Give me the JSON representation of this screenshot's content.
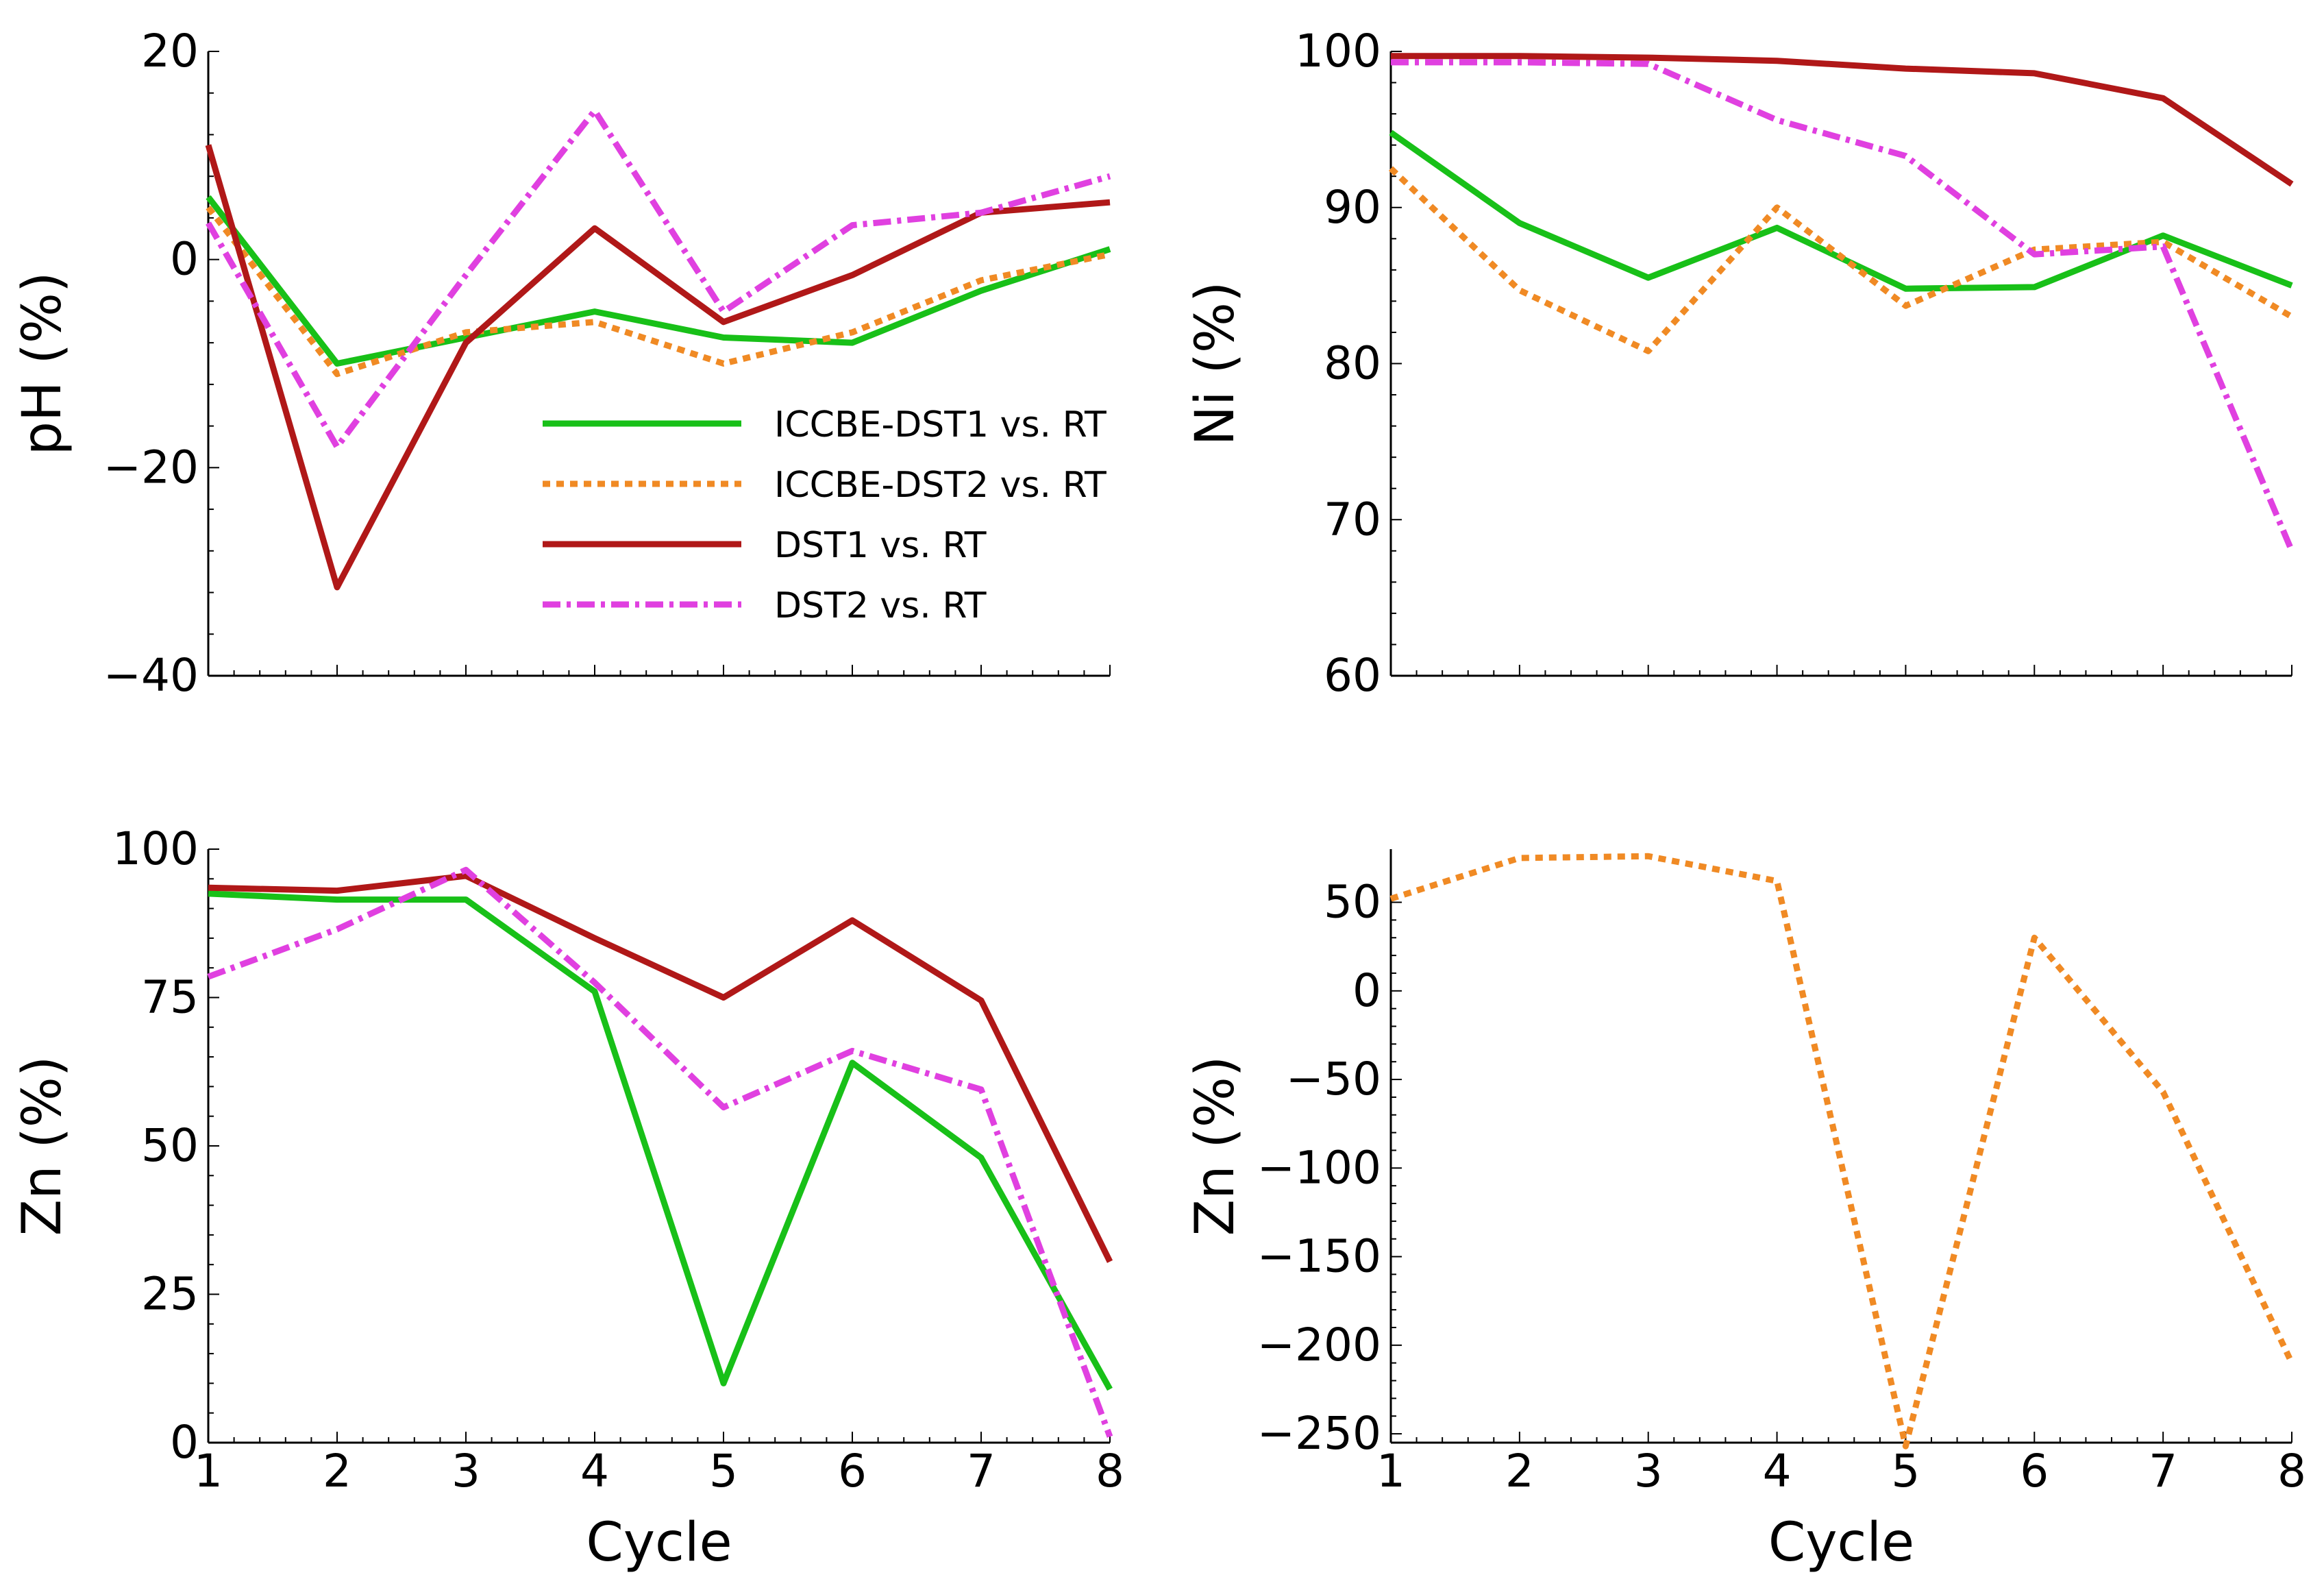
{
  "chart_data": [
    {
      "id": "ph",
      "type": "line",
      "title": "",
      "xlabel": "",
      "ylabel": "pH (%)",
      "x": [
        1,
        2,
        3,
        4,
        5,
        6,
        7,
        8
      ],
      "xlim": [
        1,
        8
      ],
      "ylim": [
        -40,
        20
      ],
      "yticks": [
        20,
        0,
        -20,
        -40
      ],
      "ytick_labels": [
        "20",
        "0",
        "−20",
        "−40"
      ],
      "xtick_labels": [],
      "grid": false,
      "legend": "center-right",
      "series": [
        {
          "name": "ICCBE-DST1 vs. RT",
          "color": "#18c018",
          "style": "solid",
          "values": [
            6,
            -10,
            -7.5,
            -5,
            -7.5,
            -8,
            -3,
            1
          ]
        },
        {
          "name": "ICCBE-DST2 vs. RT",
          "color": "#f08a24",
          "style": "dotted",
          "values": [
            5,
            -11,
            -7,
            -6,
            -10,
            -7,
            -2,
            0.5
          ]
        },
        {
          "name": "DST1 vs. RT",
          "color": "#b01818",
          "style": "solid",
          "values": [
            11,
            -31.5,
            -8,
            3,
            -6,
            -1.5,
            4.5,
            5.5
          ]
        },
        {
          "name": "DST2 vs. RT",
          "color": "#e040e0",
          "style": "dashdot",
          "values": [
            3.5,
            -18,
            -1.5,
            14.3,
            -5,
            3.3,
            4.5,
            8
          ]
        }
      ]
    },
    {
      "id": "ni",
      "type": "line",
      "title": "",
      "xlabel": "",
      "ylabel": "Ni (%)",
      "x": [
        1,
        2,
        3,
        4,
        5,
        6,
        7,
        8
      ],
      "xlim": [
        1,
        8
      ],
      "ylim": [
        60,
        100
      ],
      "yticks": [
        100,
        90,
        80,
        70,
        60
      ],
      "ytick_labels": [
        "100",
        "90",
        "80",
        "70",
        "60"
      ],
      "xtick_labels": [],
      "grid": false,
      "series": [
        {
          "name": "ICCBE-DST1 vs. RT",
          "color": "#18c018",
          "style": "solid",
          "values": [
            94.8,
            89,
            85.5,
            88.7,
            84.8,
            84.9,
            88.2,
            85
          ]
        },
        {
          "name": "ICCBE-DST2 vs. RT",
          "color": "#f08a24",
          "style": "dotted",
          "values": [
            92.5,
            84.7,
            80.8,
            90,
            83.7,
            87.3,
            87.8,
            83
          ]
        },
        {
          "name": "DST1 vs. RT",
          "color": "#b01818",
          "style": "solid",
          "values": [
            99.7,
            99.7,
            99.6,
            99.4,
            98.9,
            98.6,
            97,
            91.5
          ]
        },
        {
          "name": "DST2 vs. RT",
          "color": "#e040e0",
          "style": "dashdot",
          "values": [
            99.3,
            99.3,
            99.2,
            95.6,
            93.3,
            87,
            87.5,
            68
          ]
        }
      ]
    },
    {
      "id": "zn",
      "type": "line",
      "title": "",
      "xlabel": "Cycle",
      "ylabel": "Zn (%)",
      "x": [
        1,
        2,
        3,
        4,
        5,
        6,
        7,
        8
      ],
      "xlim": [
        1,
        8
      ],
      "ylim": [
        0,
        100
      ],
      "yticks": [
        100,
        75,
        50,
        25,
        0
      ],
      "ytick_labels": [
        "100",
        "75",
        "50",
        "25",
        "0"
      ],
      "xtick_labels": [
        "1",
        "2",
        "3",
        "4",
        "5",
        "6",
        "7",
        "8"
      ],
      "grid": false,
      "series": [
        {
          "name": "ICCBE-DST1 vs. RT",
          "color": "#18c018",
          "style": "solid",
          "values": [
            92.5,
            91.5,
            91.5,
            76,
            10,
            64,
            48,
            9
          ]
        },
        {
          "name": "DST1 vs. RT",
          "color": "#b01818",
          "style": "solid",
          "values": [
            93.5,
            93,
            95.5,
            85,
            75,
            88,
            74.5,
            30.5
          ]
        },
        {
          "name": "DST2 vs. RT",
          "color": "#e040e0",
          "style": "dashdot",
          "values": [
            78.5,
            86.5,
            96.5,
            77.5,
            56.5,
            66,
            59.5,
            1
          ]
        }
      ]
    },
    {
      "id": "zn2",
      "type": "line",
      "title": "",
      "xlabel": "Cycle",
      "ylabel": "Zn (%)",
      "x": [
        1,
        2,
        3,
        4,
        5,
        6,
        7,
        8
      ],
      "xlim": [
        1,
        8
      ],
      "ylim": [
        -255,
        80
      ],
      "yticks": [
        50,
        0,
        -50,
        -100,
        -150,
        -200,
        -250
      ],
      "ytick_labels": [
        "50",
        "0",
        "−50",
        "−100",
        "−150",
        "−200",
        "−250"
      ],
      "xtick_labels": [
        "1",
        "2",
        "3",
        "4",
        "5",
        "6",
        "7",
        "8"
      ],
      "grid": false,
      "series": [
        {
          "name": "ICCBE-DST2 vs. RT",
          "color": "#f08a24",
          "style": "dotted",
          "values": [
            52,
            75,
            76,
            62,
            -257,
            30,
            -57,
            -210
          ]
        }
      ]
    }
  ]
}
